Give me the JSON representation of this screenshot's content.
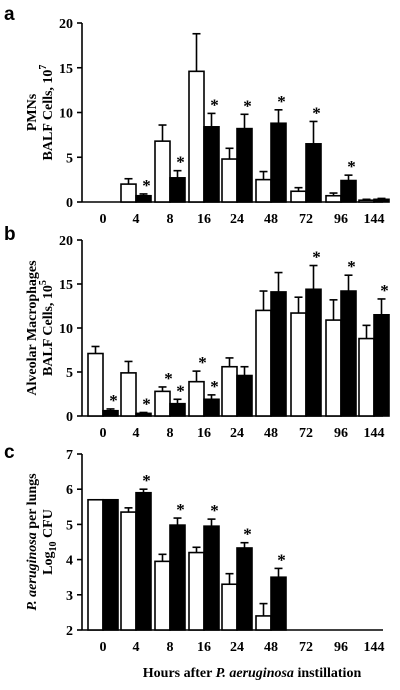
{
  "figure": {
    "xlabel_parts": [
      "Hours after ",
      "P. aeruginosa",
      " instillation"
    ]
  },
  "chart_data": [
    {
      "type": "bar",
      "panel": "a",
      "ylabel_lines": [
        "PMNs",
        "BALF Cells, 10^7"
      ],
      "ylabel_line2_base": "BALF Cells, 10",
      "ylabel_line2_exp": "7",
      "categories": [
        "0",
        "4",
        "8",
        "16",
        "24",
        "48",
        "72",
        "96",
        "144"
      ],
      "ylim": [
        0,
        20
      ],
      "yticks": [
        0,
        5,
        10,
        15,
        20
      ],
      "series": [
        {
          "fill": "#ffffff",
          "values": [
            0,
            2.0,
            6.8,
            14.6,
            4.8,
            2.5,
            1.2,
            0.7,
            0.2
          ],
          "errors": [
            0,
            0.6,
            1.8,
            4.2,
            1.2,
            0.9,
            0.4,
            0.3,
            0.1
          ]
        },
        {
          "fill": "#000000",
          "values": [
            0,
            0.7,
            2.7,
            8.4,
            8.2,
            8.8,
            6.5,
            2.4,
            0.3
          ],
          "errors": [
            0,
            0.2,
            0.8,
            1.5,
            1.6,
            1.5,
            2.5,
            0.6,
            0.1
          ]
        }
      ],
      "stars": [
        null,
        "black",
        "black",
        "black",
        "black",
        "black",
        "black",
        "black",
        null
      ],
      "star_text": "*"
    },
    {
      "type": "bar",
      "panel": "b",
      "ylabel_lines": [
        "Alveolar Macrophages",
        "BALF Cells, 10^5"
      ],
      "ylabel_line2_base": "BALF Cells, 10",
      "ylabel_line2_exp": "5",
      "categories": [
        "0",
        "4",
        "8",
        "16",
        "24",
        "48",
        "72",
        "96",
        "144"
      ],
      "ylim": [
        0,
        20
      ],
      "yticks": [
        0,
        5,
        10,
        15,
        20
      ],
      "series": [
        {
          "fill": "#ffffff",
          "values": [
            7.1,
            4.9,
            2.8,
            3.9,
            5.6,
            12.0,
            11.7,
            10.9,
            8.8
          ],
          "errors": [
            0.8,
            1.3,
            0.5,
            1.2,
            1.0,
            2.2,
            1.8,
            2.3,
            1.5
          ]
        },
        {
          "fill": "#000000",
          "values": [
            0.6,
            0.3,
            1.4,
            1.9,
            4.6,
            14.1,
            14.4,
            14.2,
            11.5
          ],
          "errors": [
            0.2,
            0.1,
            0.5,
            0.5,
            1.0,
            2.2,
            2.7,
            1.8,
            1.8
          ]
        }
      ],
      "stars": [
        "black",
        "black",
        "both",
        "both",
        null,
        null,
        "black",
        "black",
        "black"
      ],
      "star_text": "*"
    },
    {
      "type": "bar",
      "panel": "c",
      "ylabel_lines": [
        "P. aeruginosa per lungs",
        "Log10 CFU"
      ],
      "ylabel_line1_italic": "P. aeruginosa",
      "ylabel_line1_rest": " per lungs",
      "ylabel_line2_base": "Log",
      "ylabel_line2_sub": "10",
      "ylabel_line2_rest": " CFU",
      "categories": [
        "0",
        "4",
        "8",
        "16",
        "24",
        "48",
        "72",
        "96",
        "144"
      ],
      "ylim": [
        2,
        7
      ],
      "yticks": [
        2,
        3,
        4,
        5,
        6,
        7
      ],
      "series": [
        {
          "fill": "#ffffff",
          "values": [
            5.7,
            5.35,
            3.95,
            4.2,
            3.3,
            2.4,
            2.0,
            2.0,
            2.0
          ],
          "errors": [
            0,
            0.12,
            0.2,
            0.15,
            0.3,
            0.35,
            0,
            0,
            0
          ]
        },
        {
          "fill": "#000000",
          "values": [
            5.7,
            5.9,
            4.98,
            4.95,
            4.33,
            3.5,
            2.0,
            2.0,
            2.0
          ],
          "errors": [
            0,
            0.1,
            0.2,
            0.2,
            0.15,
            0.25,
            0,
            0,
            0
          ]
        }
      ],
      "stars": [
        null,
        "black",
        "black",
        "black",
        "black",
        "black",
        null,
        null,
        null
      ],
      "star_text": "*"
    }
  ]
}
